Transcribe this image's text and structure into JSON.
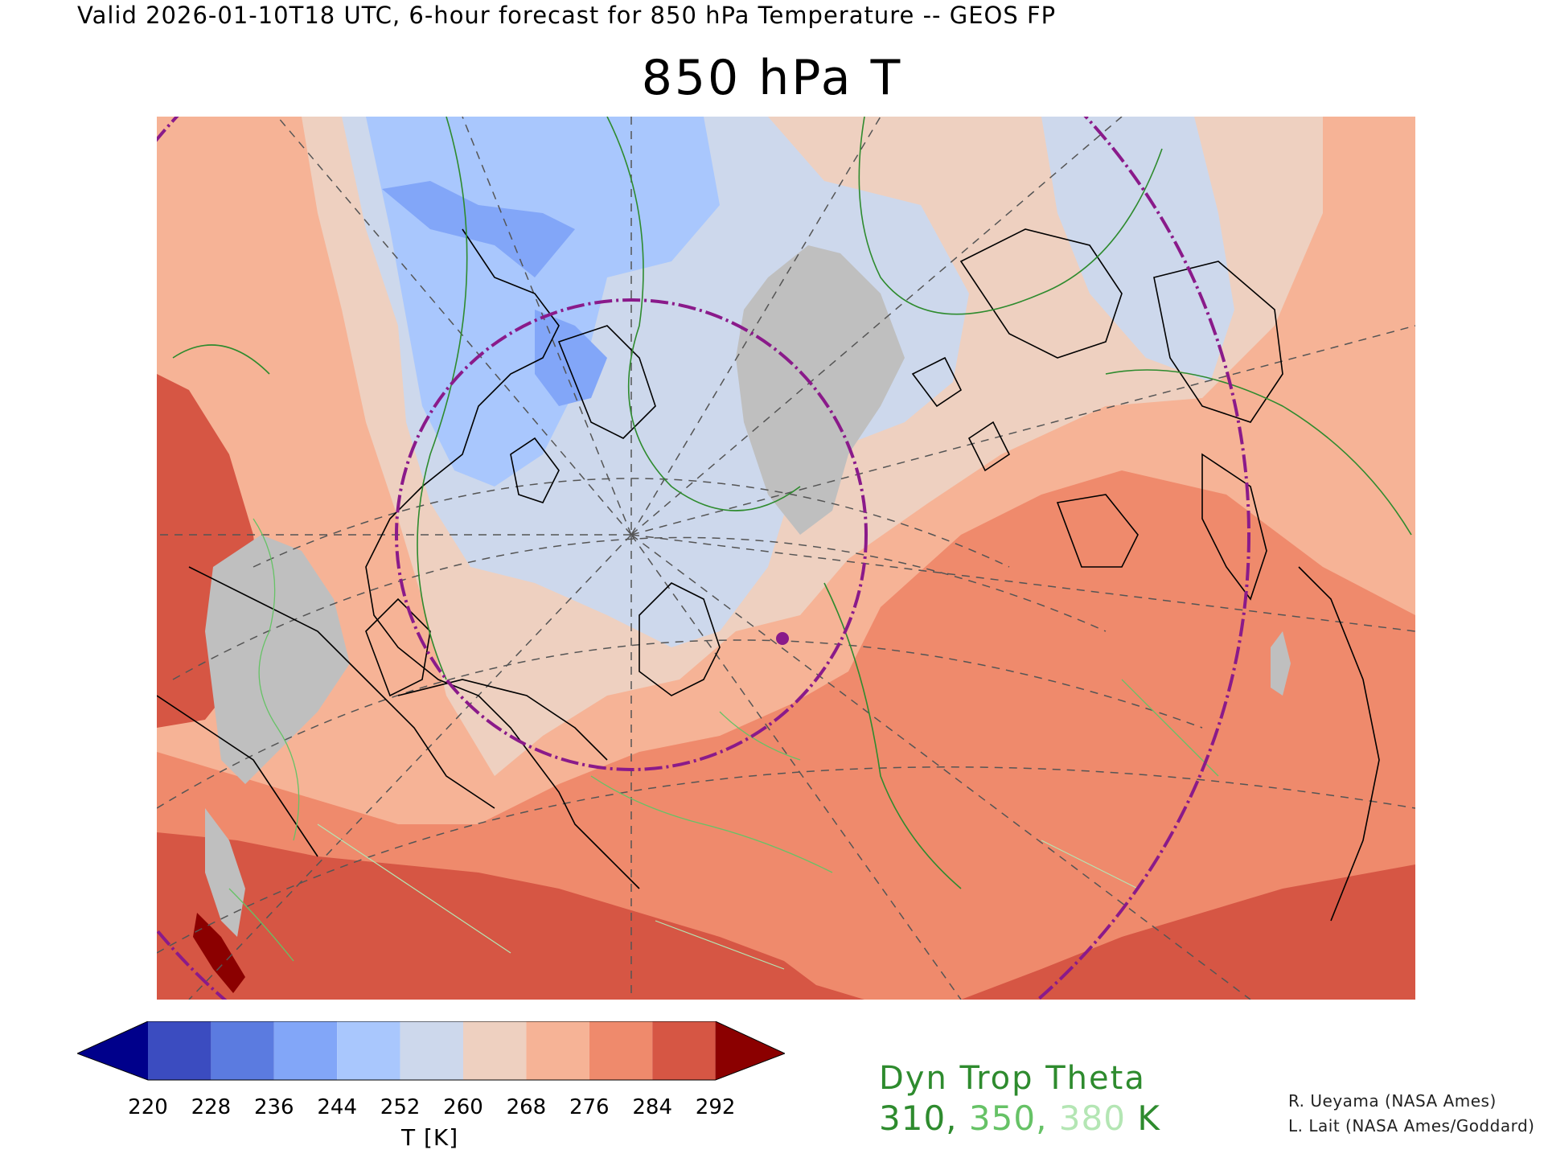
{
  "header": {
    "valid_line": "Valid 2026-01-10T18 UTC, 6-hour forecast for 850 hPa Temperature -- GEOS FP",
    "title": "850 hPa T"
  },
  "colorbar": {
    "ticks": [
      "220",
      "228",
      "236",
      "244",
      "252",
      "260",
      "268",
      "276",
      "284",
      "292"
    ],
    "unit_label": "T [K]",
    "colors": [
      "#00008b",
      "#3b4cc0",
      "#5b7be0",
      "#82a6f8",
      "#a9c7fd",
      "#cdd8ec",
      "#eed0c0",
      "#f6b396",
      "#ef8a6c",
      "#d65644",
      "#8b0000"
    ]
  },
  "contour_legend": {
    "title": "Dyn Trop Theta",
    "values": [
      {
        "text": "310",
        "color": "#2e8b2e"
      },
      {
        "text": "350",
        "color": "#66c266"
      },
      {
        "text": "380",
        "color": "#b4e6b4"
      }
    ],
    "separator": ",",
    "unit": "K"
  },
  "credits": {
    "line1": "R. Ueyama (NASA Ames)",
    "line2": "L. Lait (NASA Ames/Goddard)"
  },
  "map_colors": {
    "frozen_land": "#bfbfbf",
    "coast": "#000000",
    "graticule": "#555555",
    "range_ring": "#8a1a8a",
    "contour_310": "#2e8b2e",
    "contour_350": "#66c266",
    "contour_380": "#b4e6b4",
    "site_marker": "#8a1a8a"
  }
}
